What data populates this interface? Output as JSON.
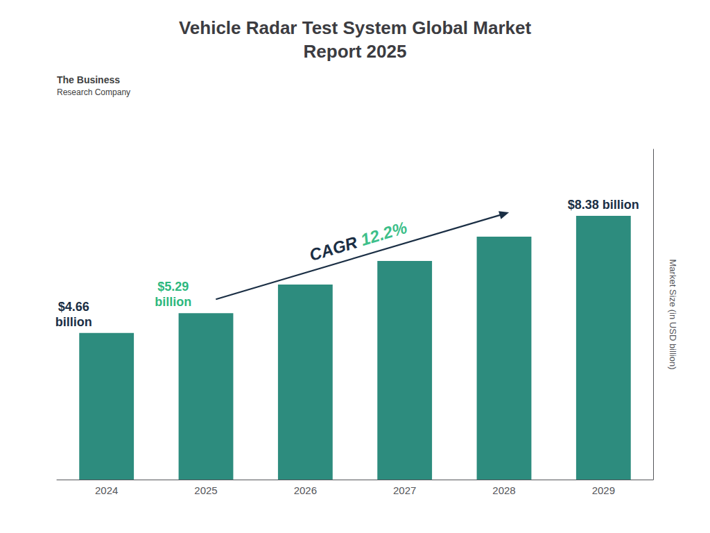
{
  "chart_data": {
    "type": "bar",
    "title": "Vehicle Radar Test System Global Market\nReport 2025",
    "categories": [
      "2024",
      "2025",
      "2026",
      "2027",
      "2028",
      "2029"
    ],
    "values": [
      4.66,
      5.29,
      6.2,
      6.95,
      7.72,
      8.38
    ],
    "color": "#2d8c7e",
    "ylabel": "Market Size (in USD billion)",
    "ylim": [
      0,
      10.5
    ],
    "tick_labels": "x",
    "grid": false,
    "annotations": [
      {
        "text": "$4.66\nbillion",
        "x": "2024",
        "color": "#1a2e44"
      },
      {
        "text": "$5.29\nbillion",
        "x": "2025",
        "color": "#2db87e"
      },
      {
        "text": "$8.38 billion",
        "x": "2029",
        "color": "#1a2e44"
      },
      {
        "type": "arrow",
        "from": "2025",
        "to": "2028",
        "color": "#1a2e44",
        "label": [
          {
            "text": "CAGR ",
            "color": "#1a2e44"
          },
          {
            "text": "12.2%",
            "color": "#3dbf8a"
          }
        ]
      },
      {
        "text": "The Business"
      },
      {
        "text": "Research Company"
      }
    ]
  }
}
